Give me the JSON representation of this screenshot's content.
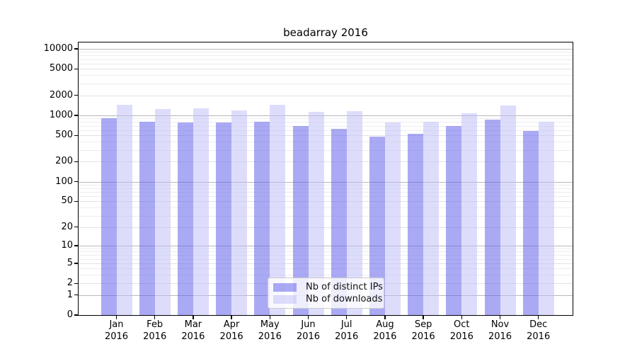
{
  "chart_data": {
    "type": "bar",
    "title": "beadarray 2016",
    "xlabel": "",
    "ylabel": "",
    "year": "2016",
    "categories": [
      "Jan",
      "Feb",
      "Mar",
      "Apr",
      "May",
      "Jun",
      "Jul",
      "Aug",
      "Sep",
      "Oct",
      "Nov",
      "Dec"
    ],
    "series": [
      {
        "name": "Nb of distinct IPs",
        "color": "#5656e9",
        "opacity": 0.5,
        "values": [
          910,
          810,
          790,
          790,
          800,
          690,
          630,
          480,
          525,
          700,
          855,
          580
        ]
      },
      {
        "name": "Nb of downloads",
        "color": "#bbbbf7",
        "opacity": 0.5,
        "values": [
          1450,
          1250,
          1290,
          1200,
          1430,
          1130,
          1150,
          775,
          805,
          1075,
          1410,
          805
        ]
      }
    ],
    "y_ticks": [
      0,
      1,
      2,
      5,
      10,
      20,
      50,
      100,
      200,
      500,
      1000,
      2000,
      5000,
      10000
    ],
    "y_scale": "log10(value+1)",
    "ylim": [
      0,
      10000
    ],
    "grid": {
      "major_color": "#b9b9b9",
      "labeled_minor_color": "#e2e2e7",
      "minor_color": "#ededf1"
    },
    "legend": {
      "position": "lower center"
    }
  }
}
